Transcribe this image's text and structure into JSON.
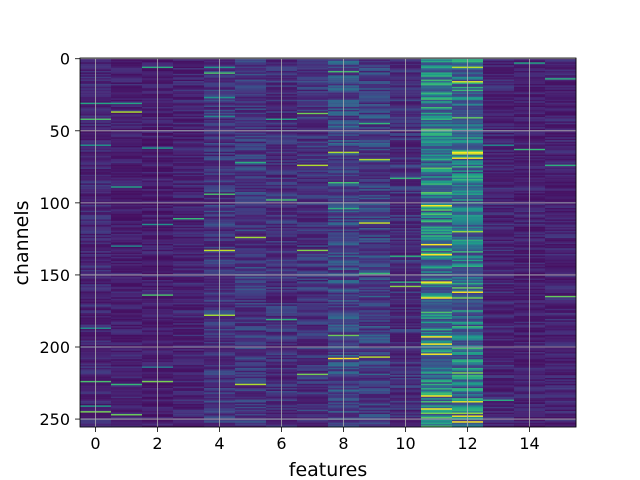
{
  "chart_data": {
    "type": "heatmap",
    "title": "",
    "xlabel": "features",
    "ylabel": "channels",
    "xlim": [
      -0.5,
      15.5
    ],
    "ylim": [
      255.5,
      -0.5
    ],
    "y_axis_inverted": true,
    "n_rows": 256,
    "n_cols": 16,
    "colormap": "viridis",
    "grid": true,
    "x_ticks": [
      0,
      2,
      4,
      6,
      8,
      10,
      12,
      14
    ],
    "y_ticks": [
      0,
      50,
      100,
      150,
      200,
      250
    ],
    "column_mean_intensity": [
      0.12,
      0.1,
      0.09,
      0.11,
      0.17,
      0.18,
      0.15,
      0.16,
      0.24,
      0.21,
      0.15,
      0.47,
      0.43,
      0.12,
      0.1,
      0.11
    ],
    "colors": {
      "background": "#ffffff",
      "grid": "#b0b0b0",
      "low": "#440154",
      "mid": "#21918c",
      "high": "#fde725"
    }
  }
}
